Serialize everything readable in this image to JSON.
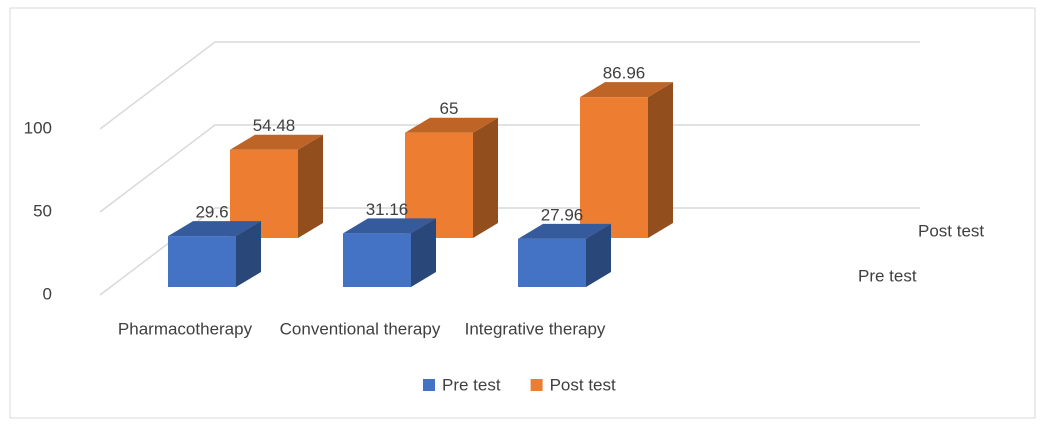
{
  "chart_data": {
    "type": "bar3d",
    "categories": [
      "Pharmacotherapy",
      "Conventional therapy",
      "Integrative therapy"
    ],
    "series": [
      {
        "name": "Pre test",
        "color": "#4472c4",
        "values": [
          29.6,
          31.16,
          27.96
        ]
      },
      {
        "name": "Post test",
        "color": "#ed7d31",
        "values": [
          54.48,
          65,
          86.96
        ]
      }
    ],
    "ylim": [
      0,
      100
    ],
    "yticks": [
      0,
      50,
      100
    ],
    "grid": true,
    "legend": "bottom"
  }
}
